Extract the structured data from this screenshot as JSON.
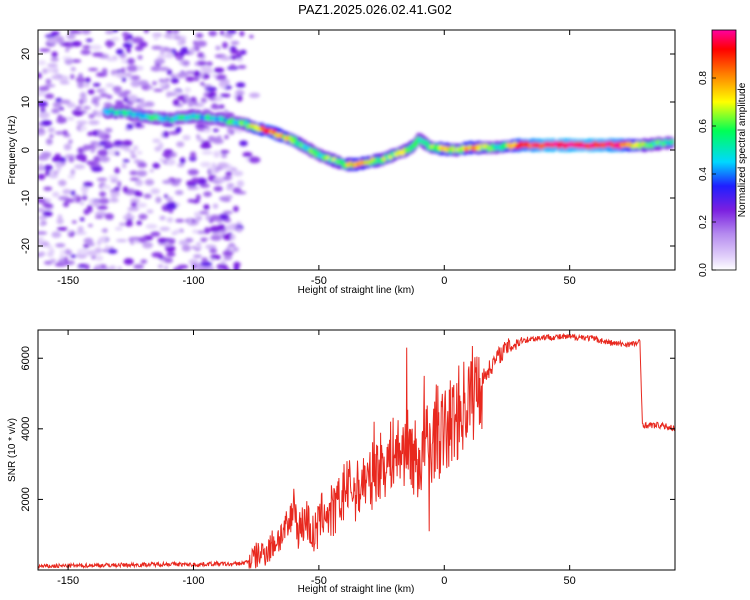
{
  "title": "PAZ1.2025.026.02.41.G02",
  "chart_data": [
    {
      "type": "heatmap",
      "xlabel": "Height of straight line (km)",
      "ylabel": "Frequency (Hz)",
      "xlim": [
        -162,
        92
      ],
      "ylim": [
        -25,
        25
      ],
      "xticks": [
        -150,
        -100,
        -50,
        0,
        50
      ],
      "yticks": [
        20,
        10,
        0,
        -10,
        -20
      ],
      "colorbar": {
        "label": "Normalized spectral amplitude",
        "range": [
          0,
          1
        ],
        "ticks": [
          "0.0",
          "0.2",
          "0.4",
          "0.6",
          "0.8"
        ],
        "colors": [
          "#ffffff",
          "#c9a6f2",
          "#7b1fe0",
          "#1f1fff",
          "#00d8ff",
          "#00ff55",
          "#ffff00",
          "#ff7a00",
          "#ff0000",
          "#ff00a0"
        ]
      },
      "ridge": {
        "x": [
          -135,
          -128,
          -120,
          -110,
          -100,
          -92,
          -85,
          -80,
          -75,
          -70,
          -65,
          -60,
          -55,
          -50,
          -45,
          -40,
          -35,
          -30,
          -25,
          -20,
          -15,
          -12,
          -10,
          -8,
          -5,
          0,
          5,
          10,
          20,
          30,
          40,
          50,
          60,
          70,
          80,
          90
        ],
        "y": [
          8,
          8,
          7,
          6.5,
          7,
          6.5,
          6,
          5.5,
          4.5,
          4,
          3,
          2,
          0.5,
          -1,
          -2,
          -3,
          -3,
          -2.5,
          -2,
          -1,
          0,
          1,
          2.5,
          1.5,
          0.5,
          0.2,
          0,
          0.5,
          0.5,
          1,
          1,
          1,
          1,
          1,
          1,
          1.5
        ],
        "amplitude": [
          0.45,
          0.5,
          0.5,
          0.5,
          0.5,
          0.45,
          0.5,
          0.55,
          0.7,
          0.85,
          0.75,
          0.65,
          0.55,
          0.55,
          0.6,
          0.6,
          0.75,
          0.7,
          0.6,
          0.6,
          0.6,
          0.6,
          0.5,
          0.55,
          0.6,
          0.75,
          0.6,
          0.8,
          0.5,
          0.85,
          0.95,
          0.95,
          0.95,
          0.9,
          0.6,
          0.5
        ]
      }
    },
    {
      "type": "line",
      "xlabel": "Height of straight line (km)",
      "ylabel": "SNR (10 * v/v)",
      "xlim": [
        -162,
        92
      ],
      "ylim": [
        0,
        6800
      ],
      "xticks": [
        -150,
        -100,
        -50,
        0,
        50
      ],
      "yticks": [
        2000,
        4000,
        6000
      ],
      "color": "#e8281e",
      "x": [
        -162,
        -150,
        -140,
        -130,
        -120,
        -110,
        -100,
        -90,
        -85,
        -80,
        -78,
        -75,
        -72,
        -70,
        -65,
        -62,
        -60,
        -58,
        -55,
        -52,
        -50,
        -48,
        -45,
        -42,
        -40,
        -38,
        -35,
        -32,
        -30,
        -28,
        -25,
        -22,
        -20,
        -18,
        -15,
        -12,
        -10,
        -7,
        -5,
        -3,
        -2,
        0,
        3,
        5,
        8,
        10,
        12,
        15,
        18,
        20,
        22,
        25,
        28,
        30,
        35,
        40,
        45,
        50,
        55,
        60,
        65,
        70,
        75,
        78,
        79,
        80,
        85,
        90,
        92
      ],
      "y": [
        100,
        120,
        130,
        140,
        150,
        170,
        150,
        180,
        160,
        200,
        250,
        400,
        500,
        600,
        1000,
        1200,
        1800,
        1100,
        1500,
        900,
        1300,
        1700,
        1500,
        1900,
        2100,
        2400,
        2200,
        2600,
        2400,
        2800,
        3000,
        3100,
        3400,
        3300,
        3500,
        3200,
        3000,
        3600,
        3500,
        4100,
        3800,
        3900,
        4200,
        4400,
        4700,
        4900,
        5100,
        5400,
        5700,
        5900,
        6100,
        6300,
        6400,
        6500,
        6550,
        6600,
        6600,
        6600,
        6600,
        6550,
        6450,
        6400,
        6400,
        6450,
        4150,
        4100,
        4100,
        4050,
        4000
      ],
      "spikes": [
        {
          "x": -60,
          "y": 2300
        },
        {
          "x": -45,
          "y": 2400
        },
        {
          "x": -40,
          "y": 3000
        },
        {
          "x": -28,
          "y": 4200
        },
        {
          "x": -15,
          "y": 6300
        },
        {
          "x": -8,
          "y": 5500
        },
        {
          "x": -6,
          "y": 1100
        }
      ]
    }
  ]
}
